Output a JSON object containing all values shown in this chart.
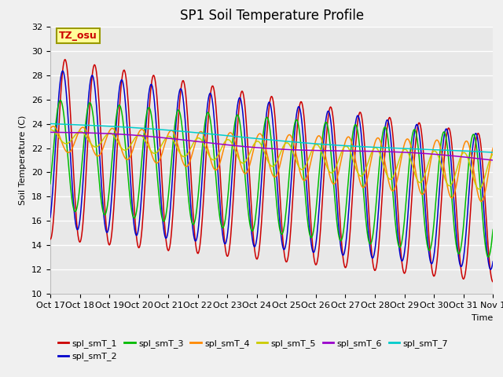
{
  "title": "SP1 Soil Temperature Profile",
  "xlabel": "Time",
  "ylabel": "Soil Temperature (C)",
  "ylim": [
    10,
    32
  ],
  "n_days": 15,
  "x_tick_labels": [
    "Oct 17",
    "Oct 18",
    "Oct 19",
    "Oct 20",
    "Oct 21",
    "Oct 22",
    "Oct 23",
    "Oct 24",
    "Oct 25",
    "Oct 26",
    "Oct 27",
    "Oct 28",
    "Oct 29",
    "Oct 30",
    "Oct 31",
    "Nov 1"
  ],
  "series_colors": {
    "spl_smT_1": "#cc0000",
    "spl_smT_2": "#0000cc",
    "spl_smT_3": "#00bb00",
    "spl_smT_4": "#ff8800",
    "spl_smT_5": "#cccc00",
    "spl_smT_6": "#9900cc",
    "spl_smT_7": "#00cccc"
  },
  "annotation_text": "TZ_osu",
  "annotation_color": "#cc0000",
  "annotation_bg": "#ffff99",
  "annotation_border": "#999900",
  "plot_bg": "#e8e8e8",
  "grid_color": "#ffffff",
  "title_fontsize": 12,
  "axis_label_fontsize": 8,
  "tick_fontsize": 8
}
